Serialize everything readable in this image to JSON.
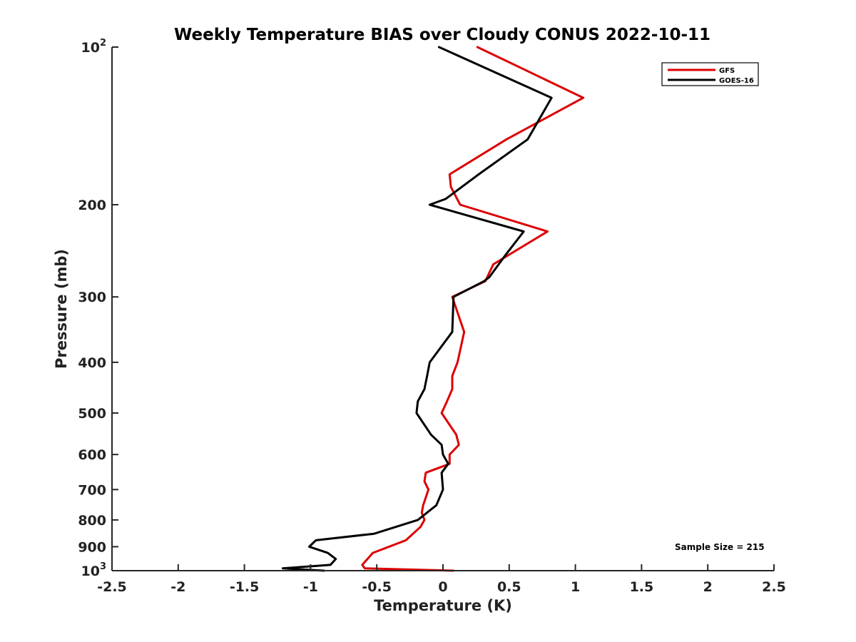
{
  "chart_data": {
    "type": "line",
    "title": "Weekly Temperature BIAS over Cloudy CONUS 2022-10-11",
    "xlabel": "Temperature (K)",
    "ylabel": "Pressure (mb)",
    "xlim": [
      -2.5,
      2.5
    ],
    "ylim": [
      100,
      1000
    ],
    "y_scale": "log",
    "y_reversed": true,
    "grid": false,
    "legend_position": "top-right",
    "x_ticks": [
      -2.5,
      -2,
      -1.5,
      -1,
      -0.5,
      0,
      0.5,
      1,
      1.5,
      2,
      2.5
    ],
    "x_tick_labels": [
      "-2.5",
      "-2",
      "-1.5",
      "-1",
      "-0.5",
      "0",
      "0.5",
      "1",
      "1.5",
      "2",
      "2.5"
    ],
    "y_tick_labels": [
      {
        "value": 100,
        "base": "10",
        "exp": "2"
      },
      {
        "value": 200,
        "base": "200",
        "exp": ""
      },
      {
        "value": 300,
        "base": "300",
        "exp": ""
      },
      {
        "value": 400,
        "base": "400",
        "exp": ""
      },
      {
        "value": 500,
        "base": "500",
        "exp": ""
      },
      {
        "value": 600,
        "base": "600",
        "exp": ""
      },
      {
        "value": 700,
        "base": "700",
        "exp": ""
      },
      {
        "value": 800,
        "base": "800",
        "exp": ""
      },
      {
        "value": 900,
        "base": "900",
        "exp": ""
      },
      {
        "value": 1000,
        "base": "10",
        "exp": "3"
      }
    ],
    "annotation": "Sample Size = 215",
    "series": [
      {
        "name": "GFS",
        "color": "#dd0000",
        "points": [
          [
            0.26,
            100
          ],
          [
            1.06,
            125
          ],
          [
            0.48,
            150
          ],
          [
            0.05,
            175
          ],
          [
            0.06,
            185
          ],
          [
            0.13,
            200
          ],
          [
            0.79,
            225
          ],
          [
            0.49,
            250
          ],
          [
            0.38,
            260
          ],
          [
            0.32,
            280
          ],
          [
            0.07,
            300
          ],
          [
            0.16,
            350
          ],
          [
            0.11,
            400
          ],
          [
            0.07,
            425
          ],
          [
            0.07,
            450
          ],
          [
            0.03,
            475
          ],
          [
            -0.01,
            500
          ],
          [
            0.1,
            550
          ],
          [
            0.12,
            575
          ],
          [
            0.05,
            600
          ],
          [
            0.05,
            625
          ],
          [
            -0.13,
            650
          ],
          [
            -0.14,
            675
          ],
          [
            -0.11,
            700
          ],
          [
            -0.13,
            725
          ],
          [
            -0.15,
            750
          ],
          [
            -0.16,
            775
          ],
          [
            -0.14,
            800
          ],
          [
            -0.17,
            825
          ],
          [
            -0.28,
            875
          ],
          [
            -0.53,
            925
          ],
          [
            -0.57,
            950
          ],
          [
            -0.61,
            975
          ],
          [
            -0.59,
            990
          ],
          [
            0.08,
            1000
          ]
        ]
      },
      {
        "name": "GOES-16",
        "color": "#000000",
        "points": [
          [
            -0.03,
            100
          ],
          [
            0.82,
            125
          ],
          [
            0.64,
            150
          ],
          [
            0.27,
            175
          ],
          [
            0.02,
            195
          ],
          [
            -0.1,
            200
          ],
          [
            0.61,
            225
          ],
          [
            0.47,
            250
          ],
          [
            0.35,
            275
          ],
          [
            0.31,
            280
          ],
          [
            0.08,
            300
          ],
          [
            0.07,
            350
          ],
          [
            -0.1,
            400
          ],
          [
            -0.12,
            425
          ],
          [
            -0.14,
            450
          ],
          [
            -0.19,
            475
          ],
          [
            -0.2,
            500
          ],
          [
            -0.09,
            550
          ],
          [
            -0.01,
            575
          ],
          [
            0.0,
            600
          ],
          [
            0.04,
            625
          ],
          [
            -0.01,
            650
          ],
          [
            0.0,
            700
          ],
          [
            -0.05,
            750
          ],
          [
            -0.19,
            800
          ],
          [
            -0.52,
            850
          ],
          [
            -0.96,
            875
          ],
          [
            -1.01,
            900
          ],
          [
            -0.87,
            925
          ],
          [
            -0.81,
            950
          ],
          [
            -0.85,
            975
          ],
          [
            -1.21,
            990
          ],
          [
            -0.9,
            1000
          ]
        ]
      }
    ]
  }
}
